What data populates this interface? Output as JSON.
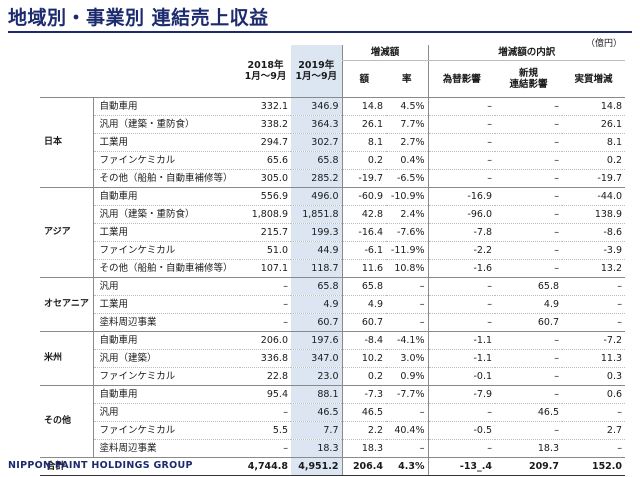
{
  "title": "地域別・事業別 連結売上収益",
  "unit": "（億円）",
  "footer": "NIPPON PAINT HOLDINGS GROUP",
  "headers": {
    "y2018": "2018年\n1月〜9月",
    "y2019": "2019年\n1月〜9月",
    "change": "増減額",
    "change_amount": "額",
    "change_rate": "率",
    "breakdown": "増減額の内訳",
    "fx": "為替影響",
    "new_consol": "新規\n連結影響",
    "real": "実質増減"
  },
  "groups": [
    {
      "region": "日本",
      "rows": [
        [
          "自動車用",
          "332.1",
          "346.9",
          "14.8",
          "4.5%",
          "–",
          "–",
          "14.8"
        ],
        [
          "汎用（建築・重防食）",
          "338.2",
          "364.3",
          "26.1",
          "7.7%",
          "–",
          "–",
          "26.1"
        ],
        [
          "工業用",
          "294.7",
          "302.7",
          "8.1",
          "2.7%",
          "–",
          "–",
          "8.1"
        ],
        [
          "ファインケミカル",
          "65.6",
          "65.8",
          "0.2",
          "0.4%",
          "–",
          "–",
          "0.2"
        ],
        [
          "その他（船舶・自動車補修等）",
          "305.0",
          "285.2",
          "-19.7",
          "-6.5%",
          "–",
          "–",
          "-19.7"
        ]
      ]
    },
    {
      "region": "アジア",
      "rows": [
        [
          "自動車用",
          "556.9",
          "496.0",
          "-60.9",
          "-10.9%",
          "-16.9",
          "–",
          "-44.0"
        ],
        [
          "汎用（建築・重防食）",
          "1,808.9",
          "1,851.8",
          "42.8",
          "2.4%",
          "-96.0",
          "–",
          "138.9"
        ],
        [
          "工業用",
          "215.7",
          "199.3",
          "-16.4",
          "-7.6%",
          "-7.8",
          "–",
          "-8.6"
        ],
        [
          "ファインケミカル",
          "51.0",
          "44.9",
          "-6.1",
          "-11.9%",
          "-2.2",
          "–",
          "-3.9"
        ],
        [
          "その他（船舶・自動車補修等）",
          "107.1",
          "118.7",
          "11.6",
          "10.8%",
          "-1.6",
          "–",
          "13.2"
        ]
      ]
    },
    {
      "region": "オセアニア",
      "rows": [
        [
          "汎用",
          "–",
          "65.8",
          "65.8",
          "–",
          "–",
          "65.8",
          "–"
        ],
        [
          "工業用",
          "–",
          "4.9",
          "4.9",
          "–",
          "–",
          "4.9",
          "–"
        ],
        [
          "塗料周辺事業",
          "–",
          "60.7",
          "60.7",
          "–",
          "–",
          "60.7",
          "–"
        ]
      ]
    },
    {
      "region": "米州",
      "rows": [
        [
          "自動車用",
          "206.0",
          "197.6",
          "-8.4",
          "-4.1%",
          "-1.1",
          "–",
          "-7.2"
        ],
        [
          "汎用（建築）",
          "336.8",
          "347.0",
          "10.2",
          "3.0%",
          "-1.1",
          "–",
          "11.3"
        ],
        [
          "ファインケミカル",
          "22.8",
          "23.0",
          "0.2",
          "0.9%",
          "-0.1",
          "–",
          "0.3"
        ]
      ]
    },
    {
      "region": "その他",
      "rows": [
        [
          "自動車用",
          "95.4",
          "88.1",
          "-7.3",
          "-7.7%",
          "-7.9",
          "–",
          "0.6"
        ],
        [
          "汎用",
          "–",
          "46.5",
          "46.5",
          "–",
          "–",
          "46.5",
          "–"
        ],
        [
          "ファインケミカル",
          "5.5",
          "7.7",
          "2.2",
          "40.4%",
          "-0.5",
          "–",
          "2.7"
        ],
        [
          "塗料周辺事業",
          "–",
          "18.3",
          "18.3",
          "–",
          "–",
          "18.3",
          "–"
        ]
      ]
    }
  ],
  "total": [
    "合計",
    "4,744.8",
    "4,951.2",
    "206.4",
    "4.3%",
    "-13_.4",
    "209.7",
    "152.0"
  ]
}
